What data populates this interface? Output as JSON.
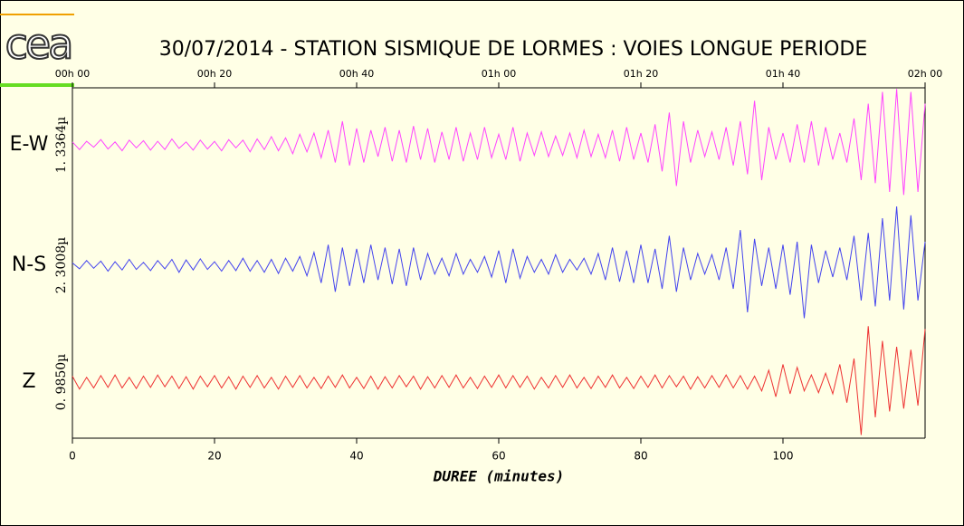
{
  "chart_data": {
    "type": "seismogram",
    "logo": "cea",
    "title": "30/07/2014  -  STATION SISMIQUE DE LORMES : VOIES LONGUE PERIODE",
    "xlabel": "DUREE (minutes)",
    "xlim": [
      0,
      120
    ],
    "xticks": [
      0,
      20,
      40,
      60,
      80,
      100
    ],
    "x2ticks": [
      {
        "value": 0,
        "label": "00h 00"
      },
      {
        "value": 20,
        "label": "00h 20"
      },
      {
        "value": 40,
        "label": "00h 40"
      },
      {
        "value": 60,
        "label": "01h 00"
      },
      {
        "value": 80,
        "label": "01h 20"
      },
      {
        "value": 100,
        "label": "01h 40"
      },
      {
        "value": 120,
        "label": "02h 00"
      }
    ],
    "ylim": [
      -1,
      1
    ],
    "x": [
      0,
      1,
      2,
      3,
      4,
      5,
      6,
      7,
      8,
      9,
      10,
      11,
      12,
      13,
      14,
      15,
      16,
      17,
      18,
      19,
      20,
      21,
      22,
      23,
      24,
      25,
      26,
      27,
      28,
      29,
      30,
      31,
      32,
      33,
      34,
      35,
      36,
      37,
      38,
      39,
      40,
      41,
      42,
      43,
      44,
      45,
      46,
      47,
      48,
      49,
      50,
      51,
      52,
      53,
      54,
      55,
      56,
      57,
      58,
      59,
      60,
      61,
      62,
      63,
      64,
      65,
      66,
      67,
      68,
      69,
      70,
      71,
      72,
      73,
      74,
      75,
      76,
      77,
      78,
      79,
      80,
      81,
      82,
      83,
      84,
      85,
      86,
      87,
      88,
      89,
      90,
      91,
      92,
      93,
      94,
      95,
      96,
      97,
      98,
      99,
      100,
      101,
      102,
      103,
      104,
      105,
      106,
      107,
      108,
      109,
      110,
      111,
      112,
      113,
      114,
      115,
      116,
      117,
      118,
      119,
      120
    ],
    "series": [
      {
        "name": "E-W",
        "scale_label": "1. 3364µ",
        "color": "#ff44ff",
        "values": [
          0.05,
          -0.08,
          0.06,
          -0.04,
          0.09,
          -0.07,
          0.05,
          -0.1,
          0.08,
          -0.05,
          0.07,
          -0.09,
          0.06,
          -0.08,
          0.1,
          -0.06,
          0.05,
          -0.09,
          0.08,
          -0.07,
          0.06,
          -0.1,
          0.09,
          -0.05,
          0.08,
          -0.12,
          0.1,
          -0.08,
          0.14,
          -0.1,
          0.12,
          -0.15,
          0.18,
          -0.12,
          0.2,
          -0.22,
          0.25,
          -0.3,
          0.4,
          -0.35,
          0.28,
          -0.3,
          0.25,
          -0.2,
          0.3,
          -0.28,
          0.25,
          -0.3,
          0.32,
          -0.25,
          0.28,
          -0.3,
          0.22,
          -0.25,
          0.3,
          -0.28,
          0.2,
          -0.25,
          0.3,
          -0.22,
          0.18,
          -0.25,
          0.3,
          -0.28,
          0.2,
          -0.18,
          0.22,
          -0.2,
          0.15,
          -0.18,
          0.2,
          -0.22,
          0.25,
          -0.2,
          0.18,
          -0.22,
          0.25,
          -0.28,
          0.3,
          -0.25,
          0.2,
          -0.3,
          0.35,
          -0.45,
          0.55,
          -0.7,
          0.4,
          -0.3,
          0.25,
          -0.2,
          0.22,
          -0.25,
          0.3,
          -0.35,
          0.4,
          -0.5,
          0.75,
          -0.6,
          0.3,
          -0.25,
          0.2,
          -0.3,
          0.35,
          -0.3,
          0.4,
          -0.35,
          0.3,
          -0.25,
          0.2,
          -0.3,
          0.45,
          -0.6,
          0.7,
          -0.65,
          0.9,
          -0.8,
          0.95,
          -0.85,
          0.9,
          -0.8,
          0.7
        ]
      },
      {
        "name": "N-S",
        "scale_label": "2. 3008µ",
        "color": "#4444ee",
        "values": [
          0.04,
          -0.06,
          0.08,
          -0.05,
          0.07,
          -0.1,
          0.06,
          -0.08,
          0.1,
          -0.07,
          0.05,
          -0.09,
          0.08,
          -0.06,
          0.1,
          -0.12,
          0.09,
          -0.08,
          0.11,
          -0.07,
          0.06,
          -0.1,
          0.08,
          -0.09,
          0.12,
          -0.1,
          0.08,
          -0.12,
          0.1,
          -0.14,
          0.12,
          -0.1,
          0.15,
          -0.18,
          0.22,
          -0.3,
          0.35,
          -0.45,
          0.3,
          -0.35,
          0.28,
          -0.3,
          0.35,
          -0.25,
          0.3,
          -0.32,
          0.28,
          -0.35,
          0.3,
          -0.25,
          0.2,
          -0.15,
          0.12,
          -0.18,
          0.2,
          -0.15,
          0.1,
          -0.12,
          0.15,
          -0.2,
          0.25,
          -0.3,
          0.28,
          -0.22,
          0.15,
          -0.12,
          0.1,
          -0.15,
          0.18,
          -0.12,
          0.1,
          -0.08,
          0.12,
          -0.15,
          0.2,
          -0.25,
          0.3,
          -0.28,
          0.25,
          -0.3,
          0.35,
          -0.3,
          0.28,
          -0.4,
          0.5,
          -0.45,
          0.3,
          -0.25,
          0.2,
          -0.15,
          0.18,
          -0.25,
          0.3,
          -0.4,
          0.6,
          -0.8,
          0.45,
          -0.35,
          0.3,
          -0.4,
          0.35,
          -0.5,
          0.4,
          -0.9,
          0.35,
          -0.3,
          0.25,
          -0.2,
          0.3,
          -0.25,
          0.5,
          -0.6,
          0.55,
          -0.7,
          0.8,
          -0.6,
          1.0,
          -0.75,
          0.85,
          -0.6,
          0.4
        ]
      },
      {
        "name": "Z",
        "scale_label": "0. 9850µ",
        "color": "#ee3333",
        "values": [
          0.1,
          -0.12,
          0.08,
          -0.1,
          0.11,
          -0.09,
          0.12,
          -0.1,
          0.08,
          -0.11,
          0.1,
          -0.09,
          0.12,
          -0.08,
          0.1,
          -0.11,
          0.09,
          -0.12,
          0.1,
          -0.08,
          0.11,
          -0.1,
          0.09,
          -0.12,
          0.1,
          -0.09,
          0.11,
          -0.1,
          0.08,
          -0.12,
          0.1,
          -0.09,
          0.11,
          -0.1,
          0.08,
          -0.11,
          0.1,
          -0.09,
          0.12,
          -0.1,
          0.08,
          -0.11,
          0.1,
          -0.12,
          0.09,
          -0.1,
          0.11,
          -0.08,
          0.1,
          -0.12,
          0.09,
          -0.1,
          0.11,
          -0.09,
          0.12,
          -0.1,
          0.08,
          -0.11,
          0.1,
          -0.09,
          0.12,
          -0.1,
          0.11,
          -0.09,
          0.1,
          -0.12,
          0.08,
          -0.1,
          0.11,
          -0.09,
          0.12,
          -0.1,
          0.08,
          -0.11,
          0.1,
          -0.09,
          0.12,
          -0.1,
          0.08,
          -0.11,
          0.1,
          -0.09,
          0.12,
          -0.1,
          0.11,
          -0.08,
          0.1,
          -0.12,
          0.09,
          -0.1,
          0.11,
          -0.09,
          0.12,
          -0.1,
          0.11,
          -0.12,
          0.1,
          -0.15,
          0.2,
          -0.25,
          0.3,
          -0.2,
          0.25,
          -0.15,
          0.12,
          -0.18,
          0.15,
          -0.2,
          0.3,
          -0.35,
          0.4,
          -0.9,
          0.95,
          -0.6,
          0.7,
          -0.5,
          0.6,
          -0.45,
          0.55,
          -0.4,
          0.9
        ]
      }
    ]
  }
}
